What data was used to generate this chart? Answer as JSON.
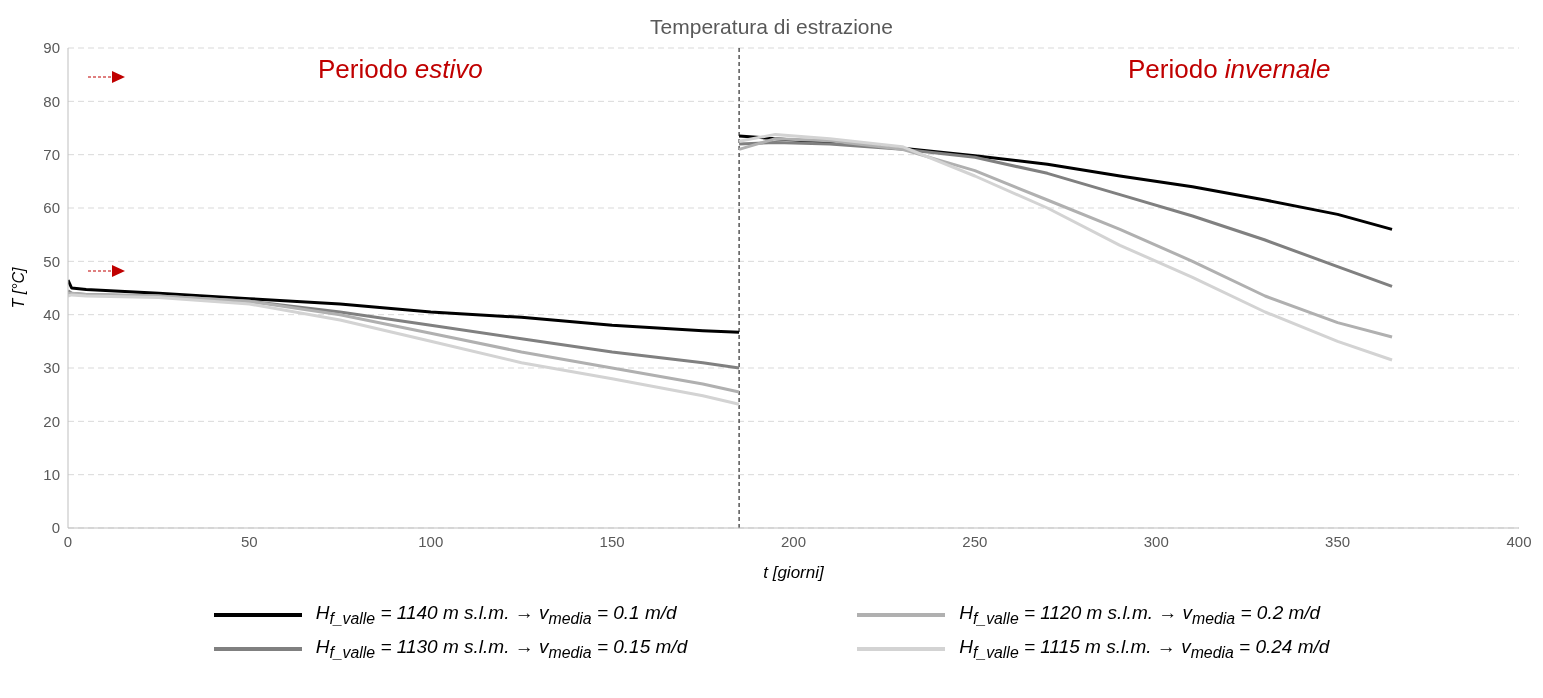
{
  "chart_data": {
    "type": "line",
    "title": "Temperatura di estrazione",
    "xlabel": "t [giorni]",
    "ylabel": "T [°C]",
    "annotations": [
      "Periodo estivo",
      "Periodo invernale"
    ],
    "x": [
      0,
      1,
      5,
      25,
      50,
      75,
      100,
      125,
      150,
      175,
      185,
      185,
      195,
      210,
      230,
      250,
      270,
      290,
      310,
      330,
      350,
      365
    ],
    "series": [
      {
        "name": "H$_{f_valle}$ = 1140 m s.l.m. → v$_{media}$ = 0.1 m/d",
        "color": "#000000",
        "values": [
          46.5,
          45,
          44.7,
          44,
          43,
          42,
          40.5,
          39.5,
          38,
          37,
          36.7,
          73.5,
          73,
          72.3,
          71.2,
          69.8,
          68.2,
          66,
          64,
          61.5,
          58.8,
          56
        ]
      },
      {
        "name": "H$_{f_valle}$ = 1130 m s.l.m. → v$_{media}$ = 0.15 m/d",
        "color": "#808080",
        "values": [
          44.5,
          44,
          43.8,
          43.5,
          42.5,
          40.5,
          38,
          35.5,
          33,
          31,
          30,
          72,
          72.3,
          72,
          71,
          69.5,
          66.5,
          62.5,
          58.5,
          54,
          49,
          45.3
        ]
      },
      {
        "name": "H$_{f_valle}$ = 1120 m s.l.m. → v$_{media}$ = 0.2 m/d",
        "color": "#b0b0b0",
        "values": [
          44,
          44,
          43.8,
          43.5,
          42.5,
          40,
          36.5,
          33,
          30,
          27,
          25.5,
          71,
          73,
          72.6,
          71,
          67,
          61.5,
          56,
          50,
          43.5,
          38.5,
          35.8
        ]
      },
      {
        "name": "H$_{f_valle}$ = 1115 m s.l.m. → v$_{media}$ = 0.24 m/d",
        "color": "#d3d3d3",
        "values": [
          43.5,
          43.7,
          43.5,
          43.2,
          42,
          39,
          35,
          31,
          28,
          24.8,
          23.2,
          72.5,
          73.8,
          73,
          71.5,
          66,
          60,
          53,
          47,
          40.5,
          35,
          31.5
        ]
      }
    ],
    "xlim": [
      0,
      400
    ],
    "xticks": [
      0,
      50,
      100,
      150,
      200,
      250,
      300,
      350,
      400
    ],
    "ylim": [
      0,
      90
    ],
    "yticks": [
      0,
      10,
      20,
      30,
      40,
      50,
      60,
      70,
      80,
      90
    ],
    "ref_lines": [
      {
        "axis": "x",
        "value": 185,
        "color": "#000000",
        "line_style": "dashed"
      }
    ],
    "grid": "y",
    "legend": "bottom",
    "marker": "none",
    "line_style": "solid"
  }
}
